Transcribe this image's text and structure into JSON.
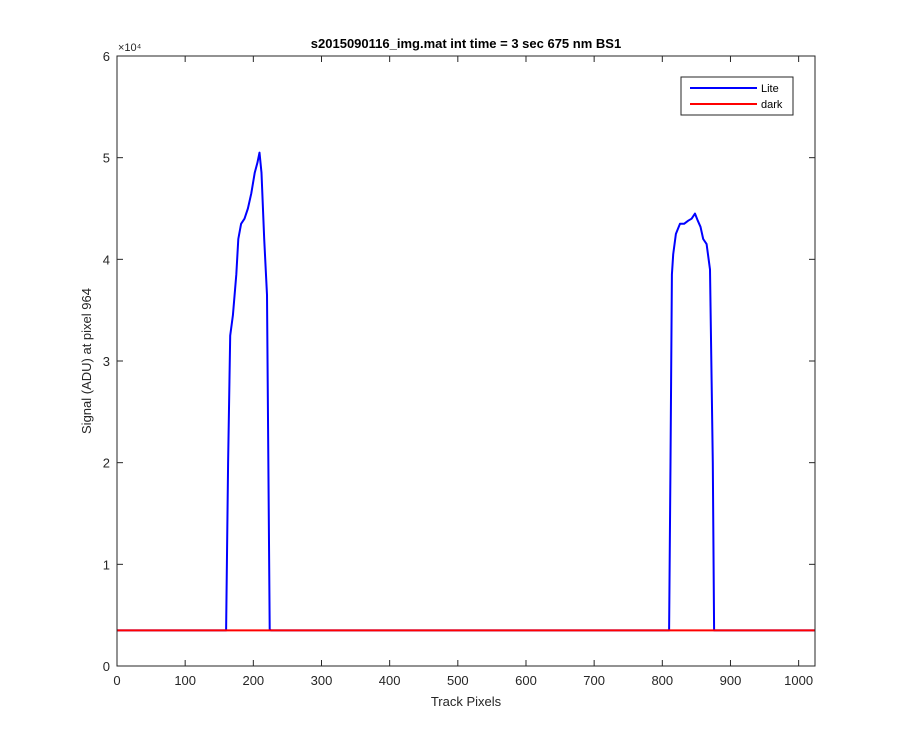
{
  "chart_data": {
    "type": "line",
    "title": "s2015090116_img.mat int time = 3 sec  675 nm BS1",
    "xlabel": "Track Pixels",
    "ylabel": "Signal (ADU) at pixel 964",
    "xlim": [
      0,
      1024
    ],
    "ylim": [
      0,
      60000
    ],
    "x_ticks": [
      0,
      100,
      200,
      300,
      400,
      500,
      600,
      700,
      800,
      900,
      1000
    ],
    "x_tick_labels": [
      "0",
      "100",
      "200",
      "300",
      "400",
      "500",
      "600",
      "700",
      "800",
      "900",
      "1000"
    ],
    "y_ticks": [
      0,
      10000,
      20000,
      30000,
      40000,
      50000,
      60000
    ],
    "y_tick_labels": [
      "0",
      "1",
      "2",
      "3",
      "4",
      "5",
      "6"
    ],
    "y_exponent_label": "×10⁴",
    "grid": false,
    "legend_position": "top-right",
    "series": [
      {
        "name": "Lite",
        "color": "#0000ff",
        "x": [
          0,
          160,
          163,
          166,
          170,
          175,
          178,
          182,
          187,
          192,
          197,
          202,
          206,
          209,
          212,
          216,
          220,
          224,
          226,
          229,
          231,
          240,
          400,
          600,
          800,
          810,
          812,
          814,
          816,
          820,
          826,
          832,
          838,
          843,
          848,
          852,
          856,
          860,
          865,
          870,
          874,
          876,
          878,
          880,
          900,
          1024
        ],
        "y": [
          3500,
          3500,
          20000,
          32500,
          34500,
          38500,
          42000,
          43500,
          44000,
          45000,
          46500,
          48500,
          49500,
          50500,
          48500,
          42000,
          36500,
          3600,
          3500,
          3500,
          3500,
          3500,
          3500,
          3500,
          3500,
          3500,
          20000,
          38500,
          40500,
          42500,
          43500,
          43500,
          43800,
          44000,
          44500,
          43800,
          43200,
          42000,
          41500,
          39000,
          20000,
          3500,
          3500,
          3500,
          3500,
          3500
        ]
      },
      {
        "name": "dark",
        "color": "#ff0000",
        "x": [
          0,
          1024
        ],
        "y": [
          3500,
          3500
        ]
      }
    ]
  }
}
